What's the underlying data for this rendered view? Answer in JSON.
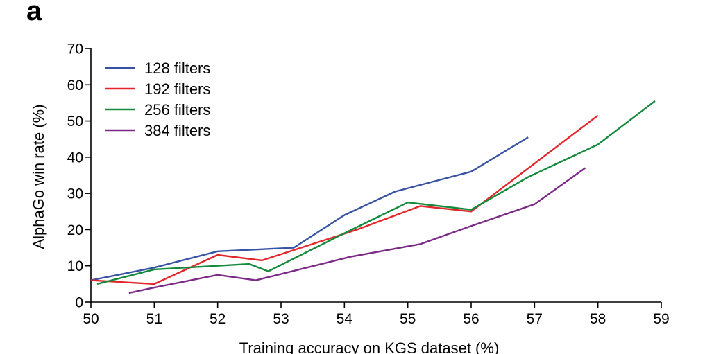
{
  "panel_label": "a",
  "chart_data": {
    "type": "line",
    "xlabel": "Training accuracy on KGS dataset (%)",
    "ylabel": "AlphaGo win rate (%)",
    "xlim": [
      50,
      59
    ],
    "ylim": [
      0,
      70
    ],
    "xticks": [
      "50",
      "51",
      "52",
      "53",
      "54",
      "55",
      "56",
      "57",
      "58",
      "59"
    ],
    "yticks": [
      "0",
      "10",
      "20",
      "30",
      "40",
      "50",
      "60",
      "70"
    ],
    "grid": false,
    "legend_position": "top-left",
    "series": [
      {
        "name": "128 filters",
        "color": "#3953a4",
        "points": [
          [
            50.0,
            6.0
          ],
          [
            51.0,
            9.5
          ],
          [
            52.0,
            14.0
          ],
          [
            53.2,
            15.0
          ],
          [
            54.0,
            24.0
          ],
          [
            54.8,
            30.5
          ],
          [
            56.0,
            36.0
          ],
          [
            56.9,
            45.5
          ]
        ]
      },
      {
        "name": "192 filters",
        "color": "#e2262a",
        "points": [
          [
            50.0,
            6.0
          ],
          [
            51.0,
            5.0
          ],
          [
            52.0,
            13.0
          ],
          [
            52.7,
            11.5
          ],
          [
            54.2,
            20.0
          ],
          [
            55.2,
            26.5
          ],
          [
            56.0,
            25.0
          ],
          [
            58.0,
            51.5
          ]
        ]
      },
      {
        "name": "256 filters",
        "color": "#138a3c",
        "points": [
          [
            50.1,
            5.0
          ],
          [
            51.0,
            9.0
          ],
          [
            52.5,
            10.5
          ],
          [
            52.8,
            8.5
          ],
          [
            54.0,
            19.0
          ],
          [
            55.0,
            27.5
          ],
          [
            56.0,
            25.5
          ],
          [
            56.9,
            34.5
          ],
          [
            58.0,
            43.5
          ],
          [
            58.9,
            55.5
          ]
        ]
      },
      {
        "name": "384 filters",
        "color": "#7b2a86",
        "points": [
          [
            50.6,
            2.5
          ],
          [
            51.0,
            4.0
          ],
          [
            52.0,
            7.5
          ],
          [
            52.6,
            6.0
          ],
          [
            54.1,
            12.5
          ],
          [
            55.2,
            16.0
          ],
          [
            56.0,
            21.0
          ],
          [
            57.0,
            27.0
          ],
          [
            57.8,
            37.0
          ]
        ]
      }
    ]
  }
}
